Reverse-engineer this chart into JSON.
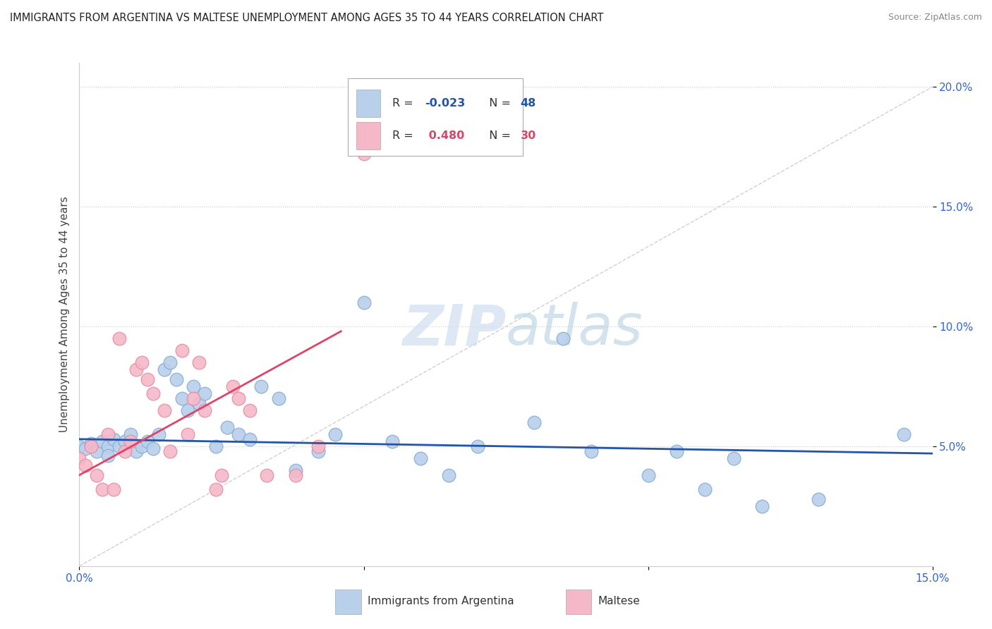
{
  "title": "IMMIGRANTS FROM ARGENTINA VS MALTESE UNEMPLOYMENT AMONG AGES 35 TO 44 YEARS CORRELATION CHART",
  "source": "Source: ZipAtlas.com",
  "ylabel": "Unemployment Among Ages 35 to 44 years",
  "xlim": [
    0.0,
    0.15
  ],
  "ylim": [
    0.0,
    0.21
  ],
  "legend_blue_r": "-0.023",
  "legend_blue_n": "48",
  "legend_pink_r": "0.480",
  "legend_pink_n": "30",
  "blue_color": "#b8d0ea",
  "pink_color": "#f5b8c8",
  "blue_edge_color": "#8ab0d8",
  "pink_edge_color": "#e890a8",
  "blue_line_color": "#2255aa",
  "pink_line_color": "#dd4466",
  "ref_line_color": "#d0d0d0",
  "title_color": "#222222",
  "axis_label_color": "#3366cc",
  "blue_scatter_x": [
    0.0,
    0.001,
    0.002,
    0.003,
    0.004,
    0.005,
    0.005,
    0.006,
    0.007,
    0.008,
    0.009,
    0.01,
    0.011,
    0.012,
    0.013,
    0.014,
    0.015,
    0.016,
    0.017,
    0.018,
    0.019,
    0.02,
    0.021,
    0.022,
    0.024,
    0.026,
    0.028,
    0.03,
    0.032,
    0.035,
    0.038,
    0.042,
    0.045,
    0.05,
    0.055,
    0.06,
    0.065,
    0.07,
    0.08,
    0.085,
    0.09,
    0.1,
    0.105,
    0.11,
    0.115,
    0.12,
    0.13,
    0.145
  ],
  "blue_scatter_y": [
    0.05,
    0.049,
    0.051,
    0.048,
    0.052,
    0.05,
    0.046,
    0.053,
    0.05,
    0.052,
    0.055,
    0.048,
    0.05,
    0.052,
    0.049,
    0.055,
    0.082,
    0.085,
    0.078,
    0.07,
    0.065,
    0.075,
    0.068,
    0.072,
    0.05,
    0.058,
    0.055,
    0.053,
    0.075,
    0.07,
    0.04,
    0.048,
    0.055,
    0.11,
    0.052,
    0.045,
    0.038,
    0.05,
    0.06,
    0.095,
    0.048,
    0.038,
    0.048,
    0.032,
    0.045,
    0.025,
    0.028,
    0.055
  ],
  "pink_scatter_x": [
    0.0,
    0.001,
    0.002,
    0.003,
    0.004,
    0.005,
    0.006,
    0.007,
    0.008,
    0.009,
    0.01,
    0.011,
    0.012,
    0.013,
    0.015,
    0.016,
    0.018,
    0.019,
    0.02,
    0.021,
    0.022,
    0.024,
    0.025,
    0.027,
    0.028,
    0.03,
    0.033,
    0.038,
    0.042,
    0.05
  ],
  "pink_scatter_y": [
    0.045,
    0.042,
    0.05,
    0.038,
    0.032,
    0.055,
    0.032,
    0.095,
    0.048,
    0.052,
    0.082,
    0.085,
    0.078,
    0.072,
    0.065,
    0.048,
    0.09,
    0.055,
    0.07,
    0.085,
    0.065,
    0.032,
    0.038,
    0.075,
    0.07,
    0.065,
    0.038,
    0.038,
    0.05,
    0.172
  ],
  "blue_trend_x": [
    0.0,
    0.15
  ],
  "blue_trend_y": [
    0.053,
    0.047
  ],
  "pink_trend_x": [
    0.0,
    0.046
  ],
  "pink_trend_y": [
    0.038,
    0.098
  ],
  "ref_line_x": [
    0.0,
    0.15
  ],
  "ref_line_y": [
    0.0,
    0.2
  ]
}
